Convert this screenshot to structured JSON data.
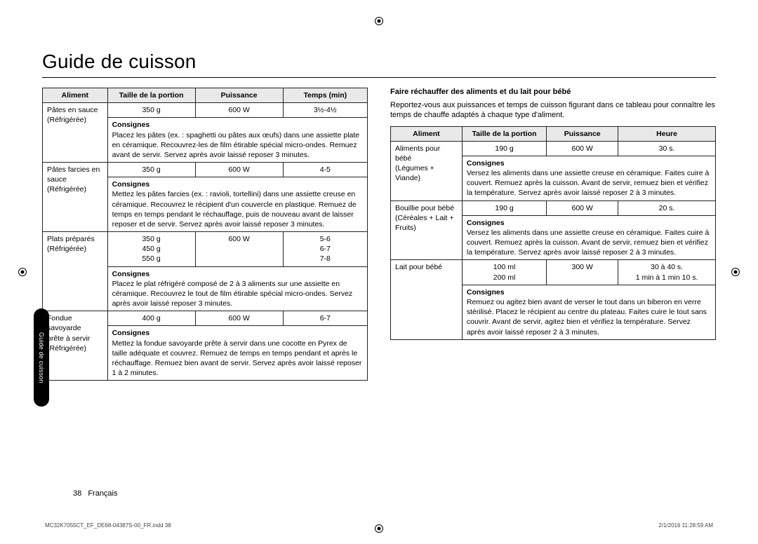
{
  "page": {
    "title": "Guide de cuisson",
    "side_tab": "Guide de cuisson",
    "page_number": "38",
    "locale": "Français",
    "print_ref_left": "MC32K7055CT_EF_DE68-04387S-00_FR.indd   38",
    "print_ref_right": "2/1/2016   11:28:59 AM"
  },
  "left_table": {
    "headers": {
      "c1": "Aliment",
      "c2": "Taille de la portion",
      "c3": "Puissance",
      "c4": "Temps (min)"
    },
    "rows": [
      {
        "aliment_l1": "Pâtes en sauce",
        "aliment_l2": "(Réfrigérée)",
        "portion": "350 g",
        "power": "600 W",
        "time": "3½-4½",
        "consignes_label": "Consignes",
        "consignes": "Placez les pâtes (ex. : spaghetti ou pâtes aux œufs) dans une assiette plate en céramique. Recouvrez-les de film étirable spécial micro-ondes. Remuez avant de servir.\nServez après avoir laissé reposer 3 minutes."
      },
      {
        "aliment_l1": "Pâtes farcies en",
        "aliment_l2": "sauce",
        "aliment_l3": "(Réfrigérée)",
        "portion": "350 g",
        "power": "600 W",
        "time": "4-5",
        "consignes_label": "Consignes",
        "consignes": "Mettez les pâtes farcies (ex. : ravioli, tortellini) dans une assiette creuse en céramique. Recouvrez le récipient d'un couvercle en plastique. Remuez de temps en temps pendant le réchauffage, puis de nouveau avant de laisser reposer et de servir. Servez après avoir laissé reposer 3 minutes."
      },
      {
        "aliment_l1": "Plats préparés",
        "aliment_l2": "(Réfrigérée)",
        "portion_l1": "350 g",
        "portion_l2": "450 g",
        "portion_l3": "550 g",
        "power": "600 W",
        "time_l1": "5-6",
        "time_l2": "6-7",
        "time_l3": "7-8",
        "consignes_label": "Consignes",
        "consignes": "Placez le plat réfrigéré composé de 2 à 3 aliments sur une assiette en céramique. Recouvrez le tout de film étirable spécial micro-ondes.\nServez après avoir laissé reposer 3 minutes."
      },
      {
        "aliment_l1": "Fondue savoyarde",
        "aliment_l2": "prête à servir",
        "aliment_l3": "(Réfrigérée)",
        "portion": "400 g",
        "power": "600 W",
        "time": "6-7",
        "consignes_label": "Consignes",
        "consignes": "Mettez la fondue savoyarde prête à servir dans une cocotte en Pyrex de taille adéquate et couvrez. Remuez de temps en temps pendant et après le réchauffage. Remuez bien avant de servir.\nServez après avoir laissé reposer 1 à 2 minutes."
      }
    ]
  },
  "right_section": {
    "heading": "Faire réchauffer des aliments et du lait pour bébé",
    "intro": "Reportez-vous aux puissances et temps de cuisson figurant dans ce tableau pour connaître les temps de chauffe adaptés à chaque type d'aliment.",
    "headers": {
      "c1": "Aliment",
      "c2": "Taille de la portion",
      "c3": "Puissance",
      "c4": "Heure"
    },
    "rows": [
      {
        "aliment_l1": "Aliments pour bébé",
        "aliment_l2": "(Légumes + Viande)",
        "portion": "190 g",
        "power": "600 W",
        "time": "30 s.",
        "consignes_label": "Consignes",
        "consignes": "Versez les aliments dans une assiette creuse en céramique. Faites cuire à couvert. Remuez après la cuisson. Avant de servir, remuez bien et vérifiez la température. Servez après avoir laissé reposer 2 à 3 minutes."
      },
      {
        "aliment_l1": "Bouillie pour bébé",
        "aliment_l2": "(Céréales + Lait +",
        "aliment_l3": "Fruits)",
        "portion": "190 g",
        "power": "600 W",
        "time": "20 s.",
        "consignes_label": "Consignes",
        "consignes": "Versez les aliments dans une assiette creuse en céramique. Faites cuire à couvert. Remuez après la cuisson. Avant de servir, remuez bien et vérifiez la température. Servez après avoir laissé reposer 2 à 3 minutes."
      },
      {
        "aliment_l1": "Lait pour bébé",
        "portion_l1": "100 ml",
        "portion_l2": "200 ml",
        "power": "300 W",
        "time_l1": "30 à 40 s.",
        "time_l2": "1 min à 1 min 10 s.",
        "consignes_label": "Consignes",
        "consignes": "Remuez ou agitez bien avant de verser le tout dans un biberon en verre stérilisé. Placez le récipient au centre du plateau. Faites cuire le tout sans couvrir. Avant de servir, agitez bien et vérifiez la température. Servez après avoir laissé reposer 2 à 3 minutes."
      }
    ]
  }
}
